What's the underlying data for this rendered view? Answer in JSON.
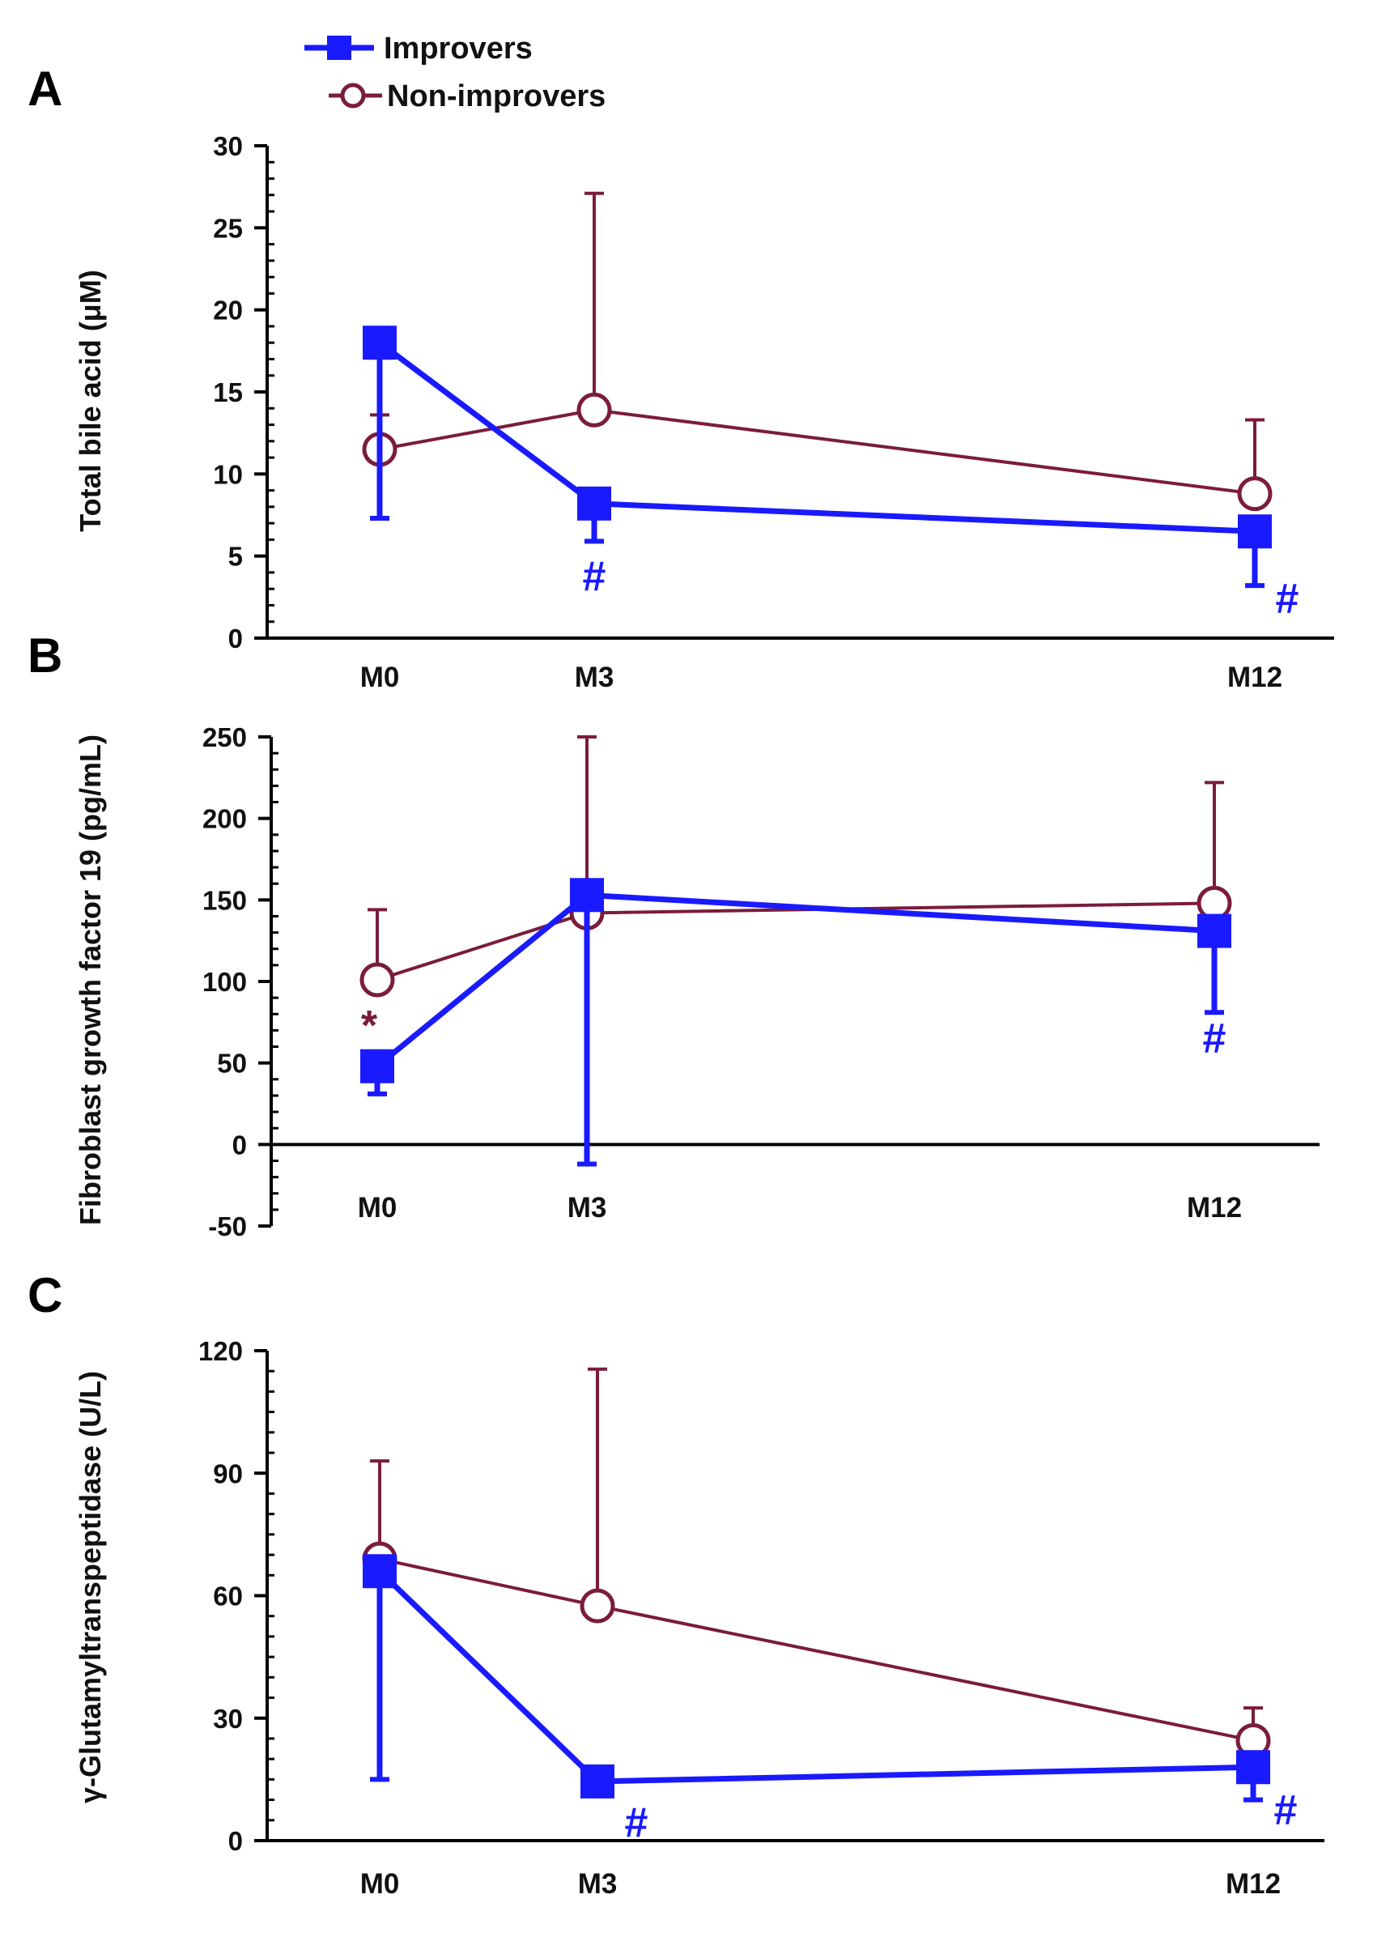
{
  "legend": {
    "improvers_label": "Improvers",
    "non_improvers_label": "Non-improvers"
  },
  "colors": {
    "improvers": "#1a1aff",
    "non_improvers": "#7b1c3a",
    "axis": "#000000"
  },
  "chart_data": [
    {
      "type": "line",
      "panel": "A",
      "title": "",
      "xlabel": "",
      "ylabel": "Total bile acid (μM)",
      "ylim": [
        0,
        30
      ],
      "yticks": [
        0,
        5,
        10,
        15,
        20,
        25,
        30
      ],
      "ytick_labels": [
        "0",
        "5",
        "10",
        "15",
        "20",
        "25",
        "30"
      ],
      "x": [
        0,
        3,
        12
      ],
      "categories": [
        "M0",
        "M3",
        "M12"
      ],
      "series": [
        {
          "name": "Improvers",
          "values": [
            18.0,
            8.2,
            6.5
          ],
          "error": [
            10.7,
            2.3,
            3.3
          ],
          "error_dir": "down"
        },
        {
          "name": "Non-improvers",
          "values": [
            11.5,
            13.9,
            8.8
          ],
          "error": [
            2.1,
            13.2,
            4.5
          ],
          "error_dir": "up"
        }
      ],
      "annotations": [
        {
          "text": "#",
          "category": "M3",
          "series": "Improvers"
        },
        {
          "text": "#",
          "category": "M12",
          "series": "Improvers"
        }
      ]
    },
    {
      "type": "line",
      "panel": "B",
      "title": "",
      "xlabel": "",
      "ylabel": "Fibroblast growth factor 19 (pg/mL)",
      "ylim": [
        -50,
        250
      ],
      "yticks": [
        -50,
        0,
        50,
        100,
        150,
        200,
        250
      ],
      "ytick_labels": [
        "-50",
        "0",
        "50",
        "100",
        "150",
        "200",
        "250"
      ],
      "x": [
        0,
        3,
        12
      ],
      "categories": [
        "M0",
        "M3",
        "M12"
      ],
      "series": [
        {
          "name": "Improvers",
          "values": [
            48,
            153,
            131
          ],
          "error": [
            17,
            165,
            50
          ],
          "error_dir": "down"
        },
        {
          "name": "Non-improvers",
          "values": [
            101,
            142,
            148
          ],
          "error": [
            43,
            108,
            74
          ],
          "error_dir": "up"
        }
      ],
      "annotations": [
        {
          "text": "*",
          "category": "M0",
          "series": "Non-improvers"
        },
        {
          "text": "#",
          "category": "M12",
          "series": "Improvers"
        }
      ]
    },
    {
      "type": "line",
      "panel": "C",
      "title": "",
      "xlabel": "",
      "ylabel": "γ-Glutamyltranspeptidase (U/L)",
      "ylim": [
        0,
        120
      ],
      "yticks": [
        0,
        30,
        60,
        90,
        120
      ],
      "ytick_labels": [
        "0",
        "30",
        "60",
        "90",
        "120"
      ],
      "x": [
        0,
        3,
        12
      ],
      "categories": [
        "M0",
        "M3",
        "M12"
      ],
      "series": [
        {
          "name": "Improvers",
          "values": [
            66,
            14.5,
            18
          ],
          "error": [
            51,
            0,
            8
          ],
          "error_dir": "down"
        },
        {
          "name": "Non-improvers",
          "values": [
            69,
            57.5,
            24.5
          ],
          "error": [
            24,
            58,
            8
          ],
          "error_dir": "up"
        }
      ],
      "annotations": [
        {
          "text": "#",
          "category": "M3",
          "series": "Improvers"
        },
        {
          "text": "#",
          "category": "M12",
          "series": "Improvers"
        }
      ]
    }
  ]
}
